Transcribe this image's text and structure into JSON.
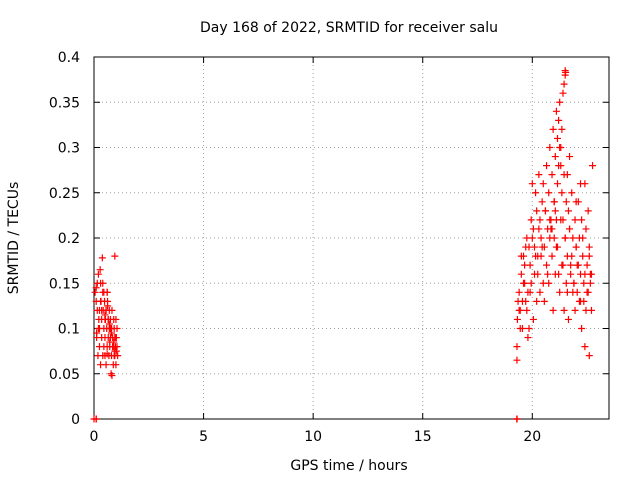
{
  "chart_data": {
    "type": "scatter",
    "title": "Day 168 of 2022, SRMTID for receiver salu",
    "xlabel": "GPS time / hours",
    "ylabel": "SRMTID / TECUs",
    "xlim": [
      0,
      23.5
    ],
    "ylim": [
      0,
      0.4
    ],
    "xticks": [
      0,
      5,
      10,
      15,
      20
    ],
    "xtick_labels": [
      "0",
      "5",
      "10",
      "15",
      "20"
    ],
    "yticks": [
      0,
      0.05,
      0.1,
      0.15,
      0.2,
      0.25,
      0.3,
      0.35,
      0.4
    ],
    "ytick_labels": [
      "0",
      "0.05",
      "0.1",
      "0.15",
      "0.2",
      "0.25",
      "0.3",
      "0.35",
      "0.4"
    ],
    "grid": true,
    "marker": "+",
    "color": "#ff0000",
    "series": [
      {
        "x": [
          0.0,
          0.05,
          0.1,
          0.12,
          0.15,
          0.18,
          0.2,
          0.22,
          0.25,
          0.25,
          0.28,
          0.3,
          0.3,
          0.32,
          0.35,
          0.35,
          0.38,
          0.4,
          0.4,
          0.42,
          0.45,
          0.45,
          0.48,
          0.5,
          0.5,
          0.52,
          0.55,
          0.55,
          0.58,
          0.6,
          0.6,
          0.62,
          0.65,
          0.65,
          0.68,
          0.7,
          0.7,
          0.72,
          0.75,
          0.75,
          0.78,
          0.8,
          0.8,
          0.82,
          0.85,
          0.85,
          0.88,
          0.9,
          0.9,
          0.92,
          0.95,
          0.95,
          0.98,
          1.0,
          1.0,
          1.02,
          1.05,
          1.05,
          1.08,
          0.15,
          0.2,
          0.3,
          0.4,
          0.5,
          0.6,
          0.7,
          0.8,
          0.9,
          1.0,
          0.45,
          0.55,
          0.65,
          0.75,
          0.85,
          0.95,
          0.35,
          0.25,
          0.12,
          0.5,
          0.62,
          0.72,
          0.82,
          0.92,
          1.02,
          0.95,
          0.6,
          0.1,
          0.1,
          0.1,
          19.3,
          19.3,
          19.32,
          19.35,
          19.4,
          19.45,
          19.5,
          19.55,
          19.6,
          19.65,
          19.7,
          19.75,
          19.8,
          19.85,
          19.9,
          19.95,
          20.0,
          20.05,
          20.1,
          20.15,
          20.2,
          20.25,
          20.3,
          20.35,
          20.4,
          20.45,
          20.5,
          20.55,
          20.6,
          20.65,
          20.7,
          20.75,
          20.8,
          20.85,
          20.9,
          20.95,
          21.0,
          21.05,
          21.1,
          21.15,
          21.2,
          21.25,
          21.3,
          21.35,
          21.4,
          21.45,
          21.5,
          21.55,
          21.6,
          21.65,
          21.7,
          21.75,
          21.8,
          21.85,
          21.9,
          21.95,
          22.0,
          22.05,
          22.1,
          22.15,
          22.2,
          22.25,
          22.3,
          22.35,
          22.4,
          22.45,
          22.5,
          22.55,
          22.6,
          22.65,
          22.7,
          22.75,
          19.4,
          19.5,
          19.6,
          19.7,
          19.8,
          19.9,
          20.0,
          20.1,
          20.2,
          20.3,
          20.4,
          20.5,
          20.6,
          20.7,
          20.8,
          20.9,
          21.0,
          21.1,
          21.2,
          21.3,
          21.4,
          21.5,
          21.6,
          21.7,
          21.8,
          21.9,
          22.0,
          22.1,
          22.2,
          22.3,
          22.4,
          22.5,
          22.6,
          22.7,
          19.45,
          19.55,
          19.65,
          19.75,
          19.85,
          19.95,
          20.05,
          20.15,
          20.25,
          20.35,
          20.45,
          20.55,
          20.65,
          20.75,
          20.85,
          20.95,
          21.05,
          21.15,
          21.25,
          21.35,
          21.45,
          21.55,
          21.65,
          21.75,
          21.85,
          21.95,
          22.05,
          22.15,
          22.25,
          22.35,
          22.45,
          22.55,
          22.65,
          21.0,
          21.05,
          21.1,
          21.15,
          21.2,
          21.25,
          21.3,
          21.35,
          21.4,
          21.45,
          21.5,
          21.5,
          21.52,
          20.8,
          20.9,
          21.6,
          21.7,
          22.0,
          22.2,
          22.4,
          22.6,
          19.3,
          19.3,
          19.3
        ],
        "y": [
          0.0,
          0.14,
          0.13,
          0.09,
          0.15,
          0.07,
          0.16,
          0.11,
          0.12,
          0.08,
          0.165,
          0.15,
          0.06,
          0.13,
          0.11,
          0.09,
          0.178,
          0.14,
          0.07,
          0.12,
          0.1,
          0.08,
          0.13,
          0.09,
          0.07,
          0.11,
          0.12,
          0.06,
          0.1,
          0.14,
          0.08,
          0.13,
          0.09,
          0.11,
          0.07,
          0.12,
          0.1,
          0.08,
          0.09,
          0.11,
          0.05,
          0.1,
          0.07,
          0.12,
          0.08,
          0.09,
          0.06,
          0.11,
          0.08,
          0.1,
          0.09,
          0.07,
          0.08,
          0.11,
          0.06,
          0.09,
          0.08,
          0.1,
          0.07,
          0.12,
          0.1,
          0.13,
          0.15,
          0.11,
          0.14,
          0.105,
          0.095,
          0.085,
          0.09,
          0.14,
          0.12,
          0.11,
          0.1,
          0.08,
          0.075,
          0.12,
          0.1,
          0.095,
          0.115,
          0.125,
          0.085,
          0.048,
          0.07,
          0.075,
          0.18,
          0.072,
          0.145,
          0.0,
          0.0,
          0.065,
          0.08,
          0.11,
          0.13,
          0.14,
          0.12,
          0.16,
          0.1,
          0.18,
          0.15,
          0.13,
          0.2,
          0.14,
          0.1,
          0.17,
          0.22,
          0.26,
          0.21,
          0.19,
          0.25,
          0.23,
          0.18,
          0.27,
          0.22,
          0.2,
          0.24,
          0.26,
          0.19,
          0.23,
          0.28,
          0.21,
          0.25,
          0.3,
          0.22,
          0.27,
          0.32,
          0.24,
          0.29,
          0.34,
          0.26,
          0.28,
          0.35,
          0.3,
          0.25,
          0.22,
          0.27,
          0.2,
          0.24,
          0.18,
          0.23,
          0.21,
          0.17,
          0.25,
          0.2,
          0.15,
          0.22,
          0.19,
          0.14,
          0.24,
          0.2,
          0.16,
          0.22,
          0.18,
          0.13,
          0.26,
          0.21,
          0.17,
          0.23,
          0.19,
          0.15,
          0.12,
          0.28,
          0.12,
          0.18,
          0.15,
          0.19,
          0.09,
          0.14,
          0.2,
          0.16,
          0.13,
          0.21,
          0.18,
          0.15,
          0.23,
          0.16,
          0.2,
          0.18,
          0.24,
          0.19,
          0.16,
          0.22,
          0.17,
          0.2,
          0.14,
          0.21,
          0.18,
          0.15,
          0.19,
          0.17,
          0.13,
          0.2,
          0.16,
          0.14,
          0.18,
          0.16,
          0.1,
          0.13,
          0.17,
          0.12,
          0.19,
          0.15,
          0.11,
          0.18,
          0.16,
          0.14,
          0.19,
          0.13,
          0.17,
          0.15,
          0.21,
          0.12,
          0.16,
          0.19,
          0.14,
          0.17,
          0.12,
          0.15,
          0.11,
          0.16,
          0.14,
          0.12,
          0.17,
          0.13,
          0.1,
          0.15,
          0.12,
          0.14,
          0.16,
          0.2,
          0.23,
          0.22,
          0.31,
          0.33,
          0.3,
          0.28,
          0.32,
          0.36,
          0.37,
          0.385,
          0.38,
          0.383,
          0.22,
          0.21,
          0.27,
          0.29,
          0.24,
          0.26,
          0.08,
          0.07,
          0.0,
          0.0,
          0.0
        ]
      }
    ]
  }
}
